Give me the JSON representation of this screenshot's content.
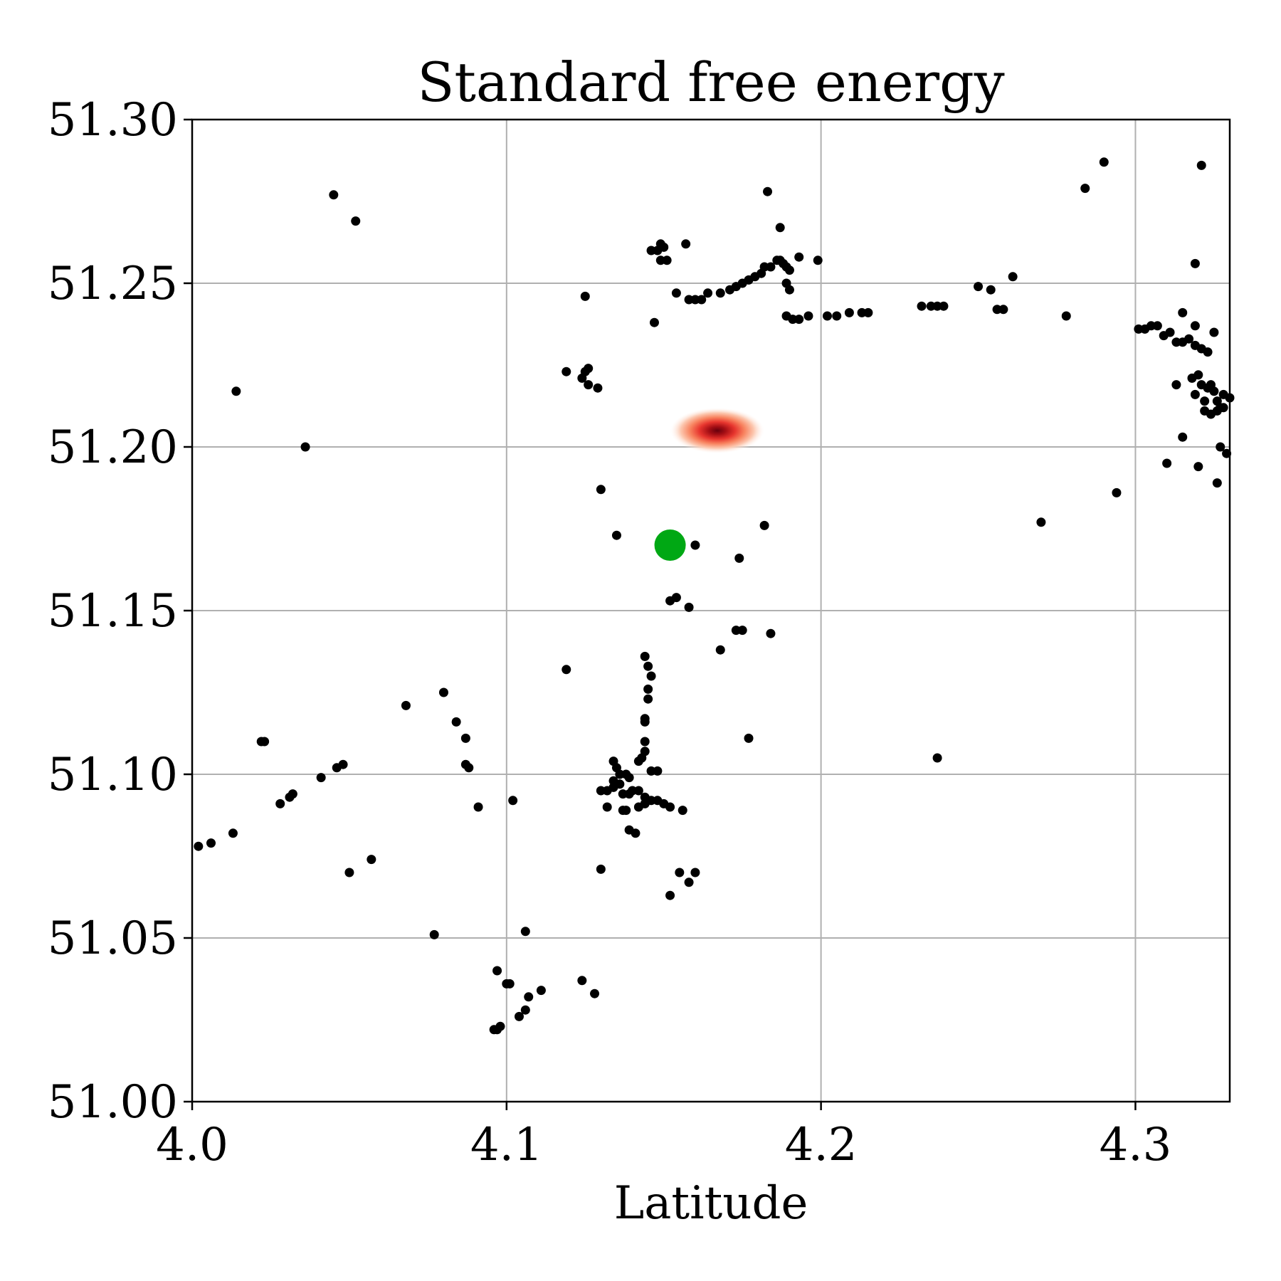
{
  "chart_data": {
    "type": "scatter",
    "title": "Standard free energy",
    "xlabel": "Latitude",
    "ylabel": "",
    "xlim": [
      4.0,
      4.33
    ],
    "ylim": [
      51.0,
      51.3
    ],
    "grid": true,
    "xticks": [
      4.0,
      4.1,
      4.2,
      4.3
    ],
    "xtick_labels": [
      "4.0",
      "4.1",
      "4.2",
      "4.3"
    ],
    "yticks": [
      51.0,
      51.05,
      51.1,
      51.15,
      51.2,
      51.25,
      51.3
    ],
    "ytick_labels": [
      "51.00",
      "51.05",
      "51.10",
      "51.15",
      "51.20",
      "51.25",
      "51.30"
    ],
    "colors": {
      "points": "#000000",
      "highlight": "#00a814",
      "density": "#67000d",
      "grid": "#b0b0b0"
    },
    "density_peak": {
      "x": 4.167,
      "y": 51.205
    },
    "highlight_point": {
      "x": 4.152,
      "y": 51.17
    },
    "points": [
      [
        4.045,
        51.277
      ],
      [
        4.052,
        51.269
      ],
      [
        4.014,
        51.217
      ],
      [
        4.036,
        51.2
      ],
      [
        4.146,
        51.26
      ],
      [
        4.148,
        51.26
      ],
      [
        4.149,
        51.262
      ],
      [
        4.15,
        51.261
      ],
      [
        4.149,
        51.257
      ],
      [
        4.151,
        51.257
      ],
      [
        4.157,
        51.262
      ],
      [
        4.183,
        51.278
      ],
      [
        4.187,
        51.267
      ],
      [
        4.154,
        51.247
      ],
      [
        4.158,
        51.245
      ],
      [
        4.16,
        51.245
      ],
      [
        4.162,
        51.245
      ],
      [
        4.168,
        51.247
      ],
      [
        4.171,
        51.248
      ],
      [
        4.173,
        51.249
      ],
      [
        4.175,
        51.25
      ],
      [
        4.177,
        51.251
      ],
      [
        4.179,
        51.252
      ],
      [
        4.181,
        51.253
      ],
      [
        4.182,
        51.255
      ],
      [
        4.184,
        51.255
      ],
      [
        4.186,
        51.257
      ],
      [
        4.187,
        51.257
      ],
      [
        4.188,
        51.256
      ],
      [
        4.189,
        51.255
      ],
      [
        4.19,
        51.254
      ],
      [
        4.189,
        51.25
      ],
      [
        4.19,
        51.248
      ],
      [
        4.189,
        51.24
      ],
      [
        4.191,
        51.239
      ],
      [
        4.193,
        51.239
      ],
      [
        4.196,
        51.24
      ],
      [
        4.193,
        51.258
      ],
      [
        4.199,
        51.257
      ],
      [
        4.202,
        51.24
      ],
      [
        4.205,
        51.24
      ],
      [
        4.209,
        51.241
      ],
      [
        4.213,
        51.241
      ],
      [
        4.215,
        51.241
      ],
      [
        4.147,
        51.238
      ],
      [
        4.125,
        51.246
      ],
      [
        4.119,
        51.223
      ],
      [
        4.124,
        51.221
      ],
      [
        4.125,
        51.223
      ],
      [
        4.126,
        51.224
      ],
      [
        4.126,
        51.219
      ],
      [
        4.129,
        51.218
      ],
      [
        4.232,
        51.243
      ],
      [
        4.235,
        51.243
      ],
      [
        4.237,
        51.243
      ],
      [
        4.239,
        51.243
      ],
      [
        4.25,
        51.249
      ],
      [
        4.254,
        51.248
      ],
      [
        4.256,
        51.242
      ],
      [
        4.258,
        51.242
      ],
      [
        4.261,
        51.252
      ],
      [
        4.278,
        51.24
      ],
      [
        4.284,
        51.279
      ],
      [
        4.29,
        51.287
      ],
      [
        4.321,
        51.286
      ],
      [
        4.319,
        51.256
      ],
      [
        4.301,
        51.236
      ],
      [
        4.303,
        51.236
      ],
      [
        4.305,
        51.237
      ],
      [
        4.307,
        51.237
      ],
      [
        4.309,
        51.234
      ],
      [
        4.311,
        51.235
      ],
      [
        4.313,
        51.232
      ],
      [
        4.315,
        51.232
      ],
      [
        4.317,
        51.233
      ],
      [
        4.319,
        51.231
      ],
      [
        4.321,
        51.23
      ],
      [
        4.323,
        51.229
      ],
      [
        4.325,
        51.235
      ],
      [
        4.315,
        51.241
      ],
      [
        4.319,
        51.237
      ],
      [
        4.313,
        51.219
      ],
      [
        4.318,
        51.221
      ],
      [
        4.319,
        51.216
      ],
      [
        4.32,
        51.222
      ],
      [
        4.321,
        51.219
      ],
      [
        4.322,
        51.214
      ],
      [
        4.323,
        51.218
      ],
      [
        4.324,
        51.219
      ],
      [
        4.325,
        51.217
      ],
      [
        4.326,
        51.214
      ],
      [
        4.327,
        51.212
      ],
      [
        4.328,
        51.216
      ],
      [
        4.322,
        51.211
      ],
      [
        4.324,
        51.21
      ],
      [
        4.326,
        51.211
      ],
      [
        4.328,
        51.212
      ],
      [
        4.33,
        51.215
      ],
      [
        4.329,
        51.198
      ],
      [
        4.327,
        51.2
      ],
      [
        4.315,
        51.203
      ],
      [
        4.31,
        51.195
      ],
      [
        4.32,
        51.194
      ],
      [
        4.326,
        51.189
      ],
      [
        4.294,
        51.186
      ],
      [
        4.27,
        51.177
      ],
      [
        4.237,
        51.105
      ],
      [
        4.13,
        51.187
      ],
      [
        4.135,
        51.173
      ],
      [
        4.16,
        51.17
      ],
      [
        4.174,
        51.166
      ],
      [
        4.182,
        51.176
      ],
      [
        4.152,
        51.153
      ],
      [
        4.154,
        51.154
      ],
      [
        4.158,
        51.151
      ],
      [
        4.173,
        51.144
      ],
      [
        4.175,
        51.144
      ],
      [
        4.184,
        51.143
      ],
      [
        4.168,
        51.138
      ],
      [
        4.144,
        51.136
      ],
      [
        4.145,
        51.133
      ],
      [
        4.146,
        51.13
      ],
      [
        4.145,
        51.126
      ],
      [
        4.145,
        51.123
      ],
      [
        4.144,
        51.117
      ],
      [
        4.144,
        51.116
      ],
      [
        4.144,
        51.11
      ],
      [
        4.144,
        51.107
      ],
      [
        4.143,
        51.105
      ],
      [
        4.142,
        51.104
      ],
      [
        4.146,
        51.101
      ],
      [
        4.148,
        51.101
      ],
      [
        4.134,
        51.104
      ],
      [
        4.135,
        51.102
      ],
      [
        4.136,
        51.1
      ],
      [
        4.138,
        51.1
      ],
      [
        4.139,
        51.099
      ],
      [
        4.134,
        51.098
      ],
      [
        4.136,
        51.097
      ],
      [
        4.13,
        51.095
      ],
      [
        4.132,
        51.095
      ],
      [
        4.134,
        51.096
      ],
      [
        4.137,
        51.094
      ],
      [
        4.139,
        51.094
      ],
      [
        4.14,
        51.095
      ],
      [
        4.142,
        51.095
      ],
      [
        4.144,
        51.093
      ],
      [
        4.146,
        51.092
      ],
      [
        4.148,
        51.092
      ],
      [
        4.15,
        51.091
      ],
      [
        4.152,
        51.09
      ],
      [
        4.142,
        51.09
      ],
      [
        4.144,
        51.091
      ],
      [
        4.137,
        51.089
      ],
      [
        4.138,
        51.089
      ],
      [
        4.132,
        51.09
      ],
      [
        4.139,
        51.083
      ],
      [
        4.141,
        51.082
      ],
      [
        4.156,
        51.089
      ],
      [
        4.13,
        51.071
      ],
      [
        4.155,
        51.07
      ],
      [
        4.158,
        51.067
      ],
      [
        4.16,
        51.07
      ],
      [
        4.152,
        51.063
      ],
      [
        4.119,
        51.132
      ],
      [
        4.177,
        51.111
      ],
      [
        4.08,
        51.125
      ],
      [
        4.084,
        51.116
      ],
      [
        4.087,
        51.111
      ],
      [
        4.087,
        51.103
      ],
      [
        4.088,
        51.102
      ],
      [
        4.091,
        51.09
      ],
      [
        4.102,
        51.092
      ],
      [
        4.068,
        51.121
      ],
      [
        4.022,
        51.11
      ],
      [
        4.023,
        51.11
      ],
      [
        4.041,
        51.099
      ],
      [
        4.046,
        51.102
      ],
      [
        4.048,
        51.103
      ],
      [
        4.028,
        51.091
      ],
      [
        4.031,
        51.093
      ],
      [
        4.032,
        51.094
      ],
      [
        4.013,
        51.082
      ],
      [
        4.006,
        51.079
      ],
      [
        4.002,
        51.078
      ],
      [
        4.05,
        51.07
      ],
      [
        4.057,
        51.074
      ],
      [
        4.077,
        51.051
      ],
      [
        4.106,
        51.052
      ],
      [
        4.097,
        51.04
      ],
      [
        4.1,
        51.036
      ],
      [
        4.101,
        51.036
      ],
      [
        4.107,
        51.032
      ],
      [
        4.111,
        51.034
      ],
      [
        4.104,
        51.026
      ],
      [
        4.106,
        51.028
      ],
      [
        4.096,
        51.022
      ],
      [
        4.097,
        51.022
      ],
      [
        4.098,
        51.023
      ],
      [
        4.124,
        51.037
      ],
      [
        4.128,
        51.033
      ],
      [
        4.164,
        51.247
      ]
    ]
  }
}
